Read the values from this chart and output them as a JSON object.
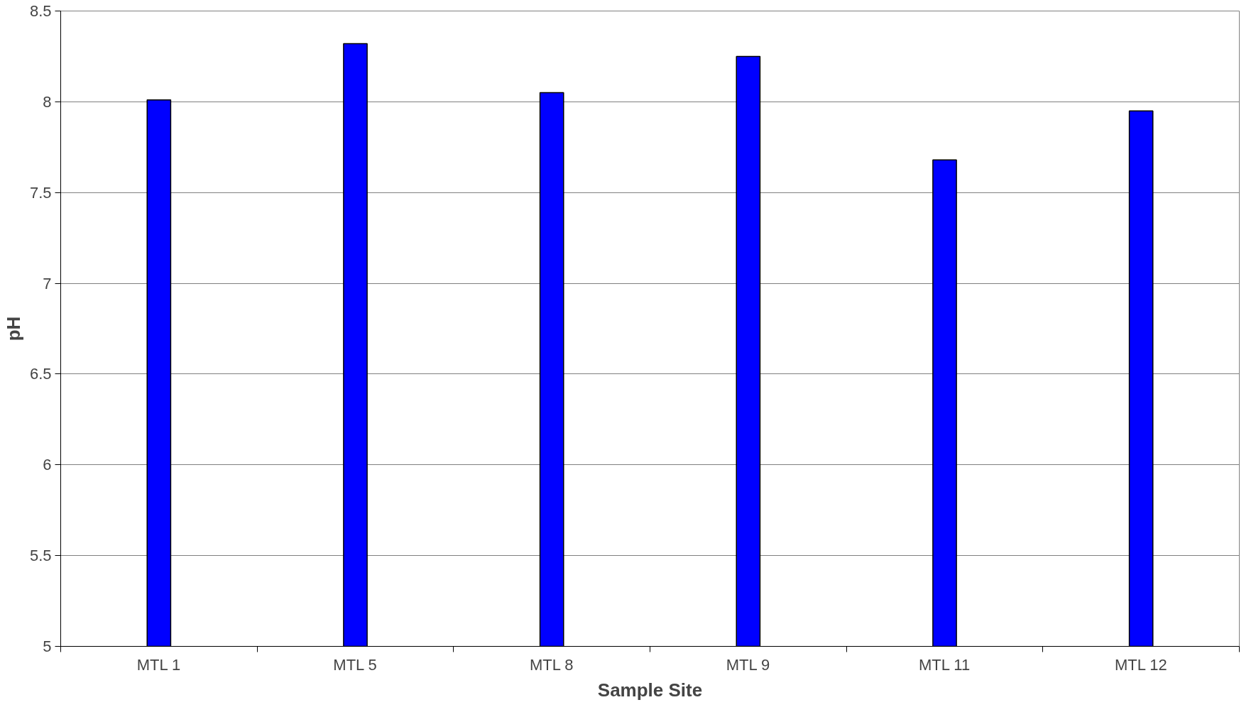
{
  "chart_data": {
    "type": "bar",
    "xlabel": "Sample Site",
    "ylabel": "pH",
    "categories": [
      "MTL 1",
      "MTL 5",
      "MTL 8",
      "MTL 9",
      "MTL 11",
      "MTL 12"
    ],
    "values": [
      8.01,
      8.32,
      8.05,
      8.25,
      7.68,
      7.95
    ],
    "color": "#0000ff",
    "ylim": [
      5,
      8.5
    ],
    "yticks": [
      5,
      5.5,
      6,
      6.5,
      7,
      7.5,
      8,
      8.5
    ],
    "grid": "y"
  }
}
